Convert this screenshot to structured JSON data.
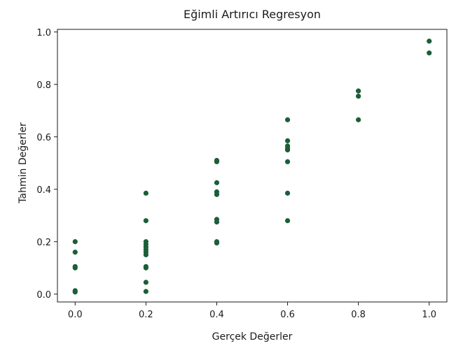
{
  "chart_data": {
    "type": "scatter",
    "title": "Eğimli Artırıcı Regresyon",
    "xlabel": "Gerçek Değerler",
    "ylabel": "Tahmin Değerler",
    "xlim": [
      -0.05,
      1.05
    ],
    "ylim": [
      -0.03,
      1.01
    ],
    "xticks": [
      0.0,
      0.2,
      0.4,
      0.6,
      0.8,
      1.0
    ],
    "xtick_labels": [
      "0.0",
      "0.2",
      "0.4",
      "0.6",
      "0.8",
      "1.0"
    ],
    "yticks": [
      0.0,
      0.2,
      0.4,
      0.6,
      0.8,
      1.0
    ],
    "ytick_labels": [
      "0.0",
      "0.2",
      "0.4",
      "0.6",
      "0.8",
      "1.0"
    ],
    "grid": false,
    "marker_color": "#1b5e37",
    "series": [
      {
        "x": [
          0.0,
          0.0,
          0.0,
          0.0,
          0.0,
          0.0,
          0.2,
          0.2,
          0.2,
          0.2,
          0.2,
          0.2,
          0.2,
          0.2,
          0.2,
          0.2,
          0.2,
          0.2,
          0.4,
          0.4,
          0.4,
          0.4,
          0.4,
          0.4,
          0.4,
          0.4,
          0.4,
          0.6,
          0.6,
          0.6,
          0.6,
          0.6,
          0.6,
          0.6,
          0.6,
          0.8,
          0.8,
          0.8,
          1.0,
          1.0
        ],
        "y": [
          0.2,
          0.16,
          0.105,
          0.1,
          0.013,
          0.008,
          0.385,
          0.28,
          0.2,
          0.19,
          0.18,
          0.17,
          0.16,
          0.15,
          0.105,
          0.1,
          0.045,
          0.01,
          0.51,
          0.505,
          0.425,
          0.39,
          0.38,
          0.285,
          0.275,
          0.2,
          0.195,
          0.665,
          0.585,
          0.565,
          0.555,
          0.55,
          0.505,
          0.385,
          0.28,
          0.775,
          0.755,
          0.665,
          0.965,
          0.92
        ]
      }
    ]
  }
}
